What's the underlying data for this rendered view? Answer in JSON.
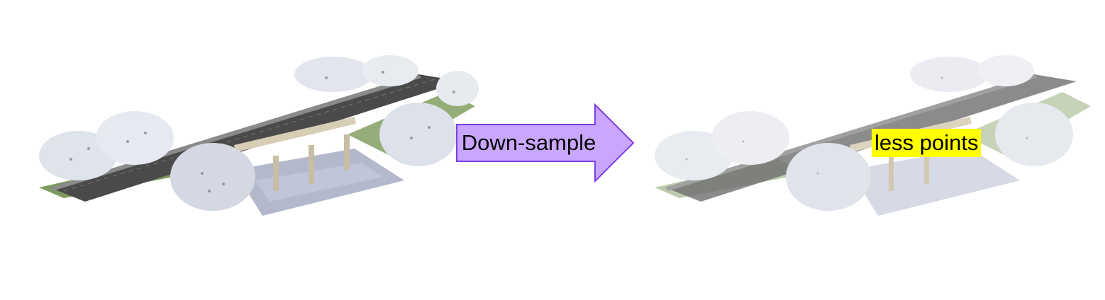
{
  "arrow_label": "Down-sample",
  "result_label": "less points",
  "colors": {
    "arrow_fill": "#c9a6ff",
    "arrow_stroke": "#7b3fe4",
    "highlight": "#ffff00",
    "road": "#4a4a4a",
    "vegetation": "#6f8f4e",
    "foliage": "#e4e7ee",
    "concrete": "#d8cdb5"
  },
  "panels": [
    {
      "name": "original-point-cloud",
      "depiction": "dense point cloud of road bridge with trees"
    },
    {
      "name": "downsampled-point-cloud",
      "depiction": "sparser point cloud of the same bridge"
    }
  ]
}
